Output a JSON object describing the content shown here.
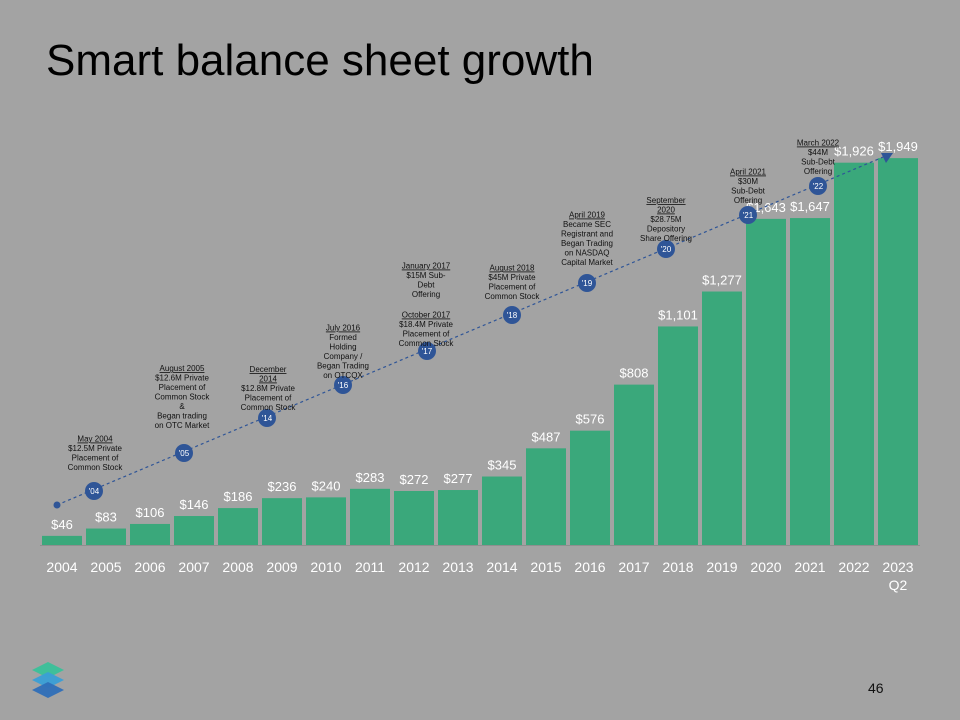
{
  "slide": {
    "title": "Smart balance sheet growth",
    "page_number": "46"
  },
  "colors": {
    "background": "#a3a3a3",
    "bar": "#3aa87b",
    "milestone": "#2f5597",
    "label": "#ffffff",
    "axis_text": "#ffffff",
    "note_text": "#111111"
  },
  "chart_data": {
    "type": "bar",
    "title": "",
    "xlabel": "",
    "ylabel": "",
    "ylim": [
      0,
      2000
    ],
    "categories": [
      "2004",
      "2005",
      "2006",
      "2007",
      "2008",
      "2009",
      "2010",
      "2011",
      "2012",
      "2013",
      "2014",
      "2015",
      "2016",
      "2017",
      "2018",
      "2019",
      "2020",
      "2021",
      "2022",
      "2023|Q2"
    ],
    "values": [
      46,
      83,
      106,
      146,
      186,
      236,
      240,
      283,
      272,
      277,
      345,
      487,
      576,
      808,
      1101,
      1277,
      1643,
      1647,
      1926,
      1949
    ],
    "value_labels": [
      "$46",
      "$83",
      "$106",
      "$146",
      "$186",
      "$236",
      "$240",
      "$283",
      "$272",
      "$277",
      "$345",
      "$487",
      "$576",
      "$808",
      "$1,101",
      "$1,277",
      "$1,643",
      "$1,647",
      "$1,926",
      "$1,949"
    ],
    "grid": false,
    "legend": "none",
    "milestones": [
      {
        "label": "'04",
        "heading": "May 2004",
        "lines": [
          "$12.5M  Private",
          "Placement of",
          "Common Stock"
        ]
      },
      {
        "label": "'05",
        "heading": "August 2005",
        "lines": [
          "$12.6M  Private",
          "Placement of",
          "Common Stock",
          "&",
          "Began trading",
          "on OTC Market"
        ]
      },
      {
        "label": "'14",
        "heading": "December|2014",
        "lines": [
          "$12.8M  Private",
          "Placement of",
          "Common Stock"
        ]
      },
      {
        "label": "'16",
        "heading": "July 2016",
        "lines": [
          "Formed",
          "Holding",
          "Company /",
          "Began Trading",
          "on OTCQX"
        ]
      },
      {
        "label": "'17",
        "heading": "January 2017",
        "lines": [
          "$15M Sub-",
          "Debt",
          "Offering"
        ],
        "heading2": "October 2017",
        "lines2": [
          "$18.4M  Private",
          "Placement of",
          "Common Stock"
        ]
      },
      {
        "label": "'18",
        "heading": "August 2018",
        "lines": [
          "$45M  Private",
          "Placement of",
          "Common Stock"
        ]
      },
      {
        "label": "'19",
        "heading": "April 2019",
        "lines": [
          "Became SEC",
          "Registrant and",
          "Began Trading",
          "on NASDAQ",
          "Capital Market"
        ]
      },
      {
        "label": "'20",
        "heading": "September|2020",
        "lines": [
          "$28.75M",
          "Depository",
          "Share Offering"
        ]
      },
      {
        "label": "'21",
        "heading": "April 2021",
        "lines": [
          "$30M",
          "Sub-Debt",
          "Offering"
        ]
      },
      {
        "label": "'22",
        "heading": "March 2022",
        "lines": [
          "$44M",
          "Sub-Debt",
          "Offering"
        ]
      }
    ]
  }
}
